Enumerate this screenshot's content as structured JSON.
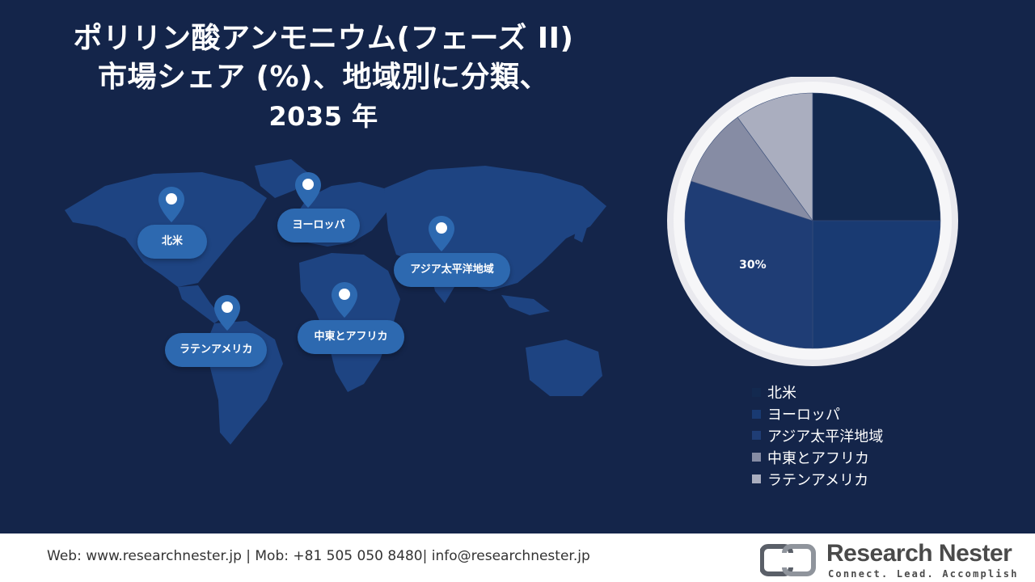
{
  "title": {
    "line1": "ポリリン酸アンモニウム(フェーズ II)",
    "line2": "市場シェア (%)、地域別に分類、",
    "line3": "2035 年"
  },
  "map": {
    "regions": [
      "北米",
      "ヨーロッパ",
      "アジア太平洋地域",
      "中東とアフリカ",
      "ラテンアメリカ"
    ]
  },
  "chart_data": {
    "type": "pie",
    "title": "",
    "categories": [
      "北米",
      "ヨーロッパ",
      "アジア太平洋地域",
      "中東とアフリカ",
      "ラテンアメリカ"
    ],
    "values": [
      25,
      25,
      30,
      10,
      10
    ],
    "data_labels": [
      "",
      "",
      "30%",
      "",
      ""
    ],
    "colors": [
      "#13294f",
      "#193a72",
      "#1f3d75",
      "#868ca4",
      "#aaaebf"
    ],
    "legend_position": "bottom-right"
  },
  "footer": {
    "contact": "Web: www.researchnester.jp | Mob: +81 505 050 8480| info@researchnester.jp",
    "logo_name": "Research Nester",
    "logo_tagline": "Connect. Lead. Accomplish"
  }
}
